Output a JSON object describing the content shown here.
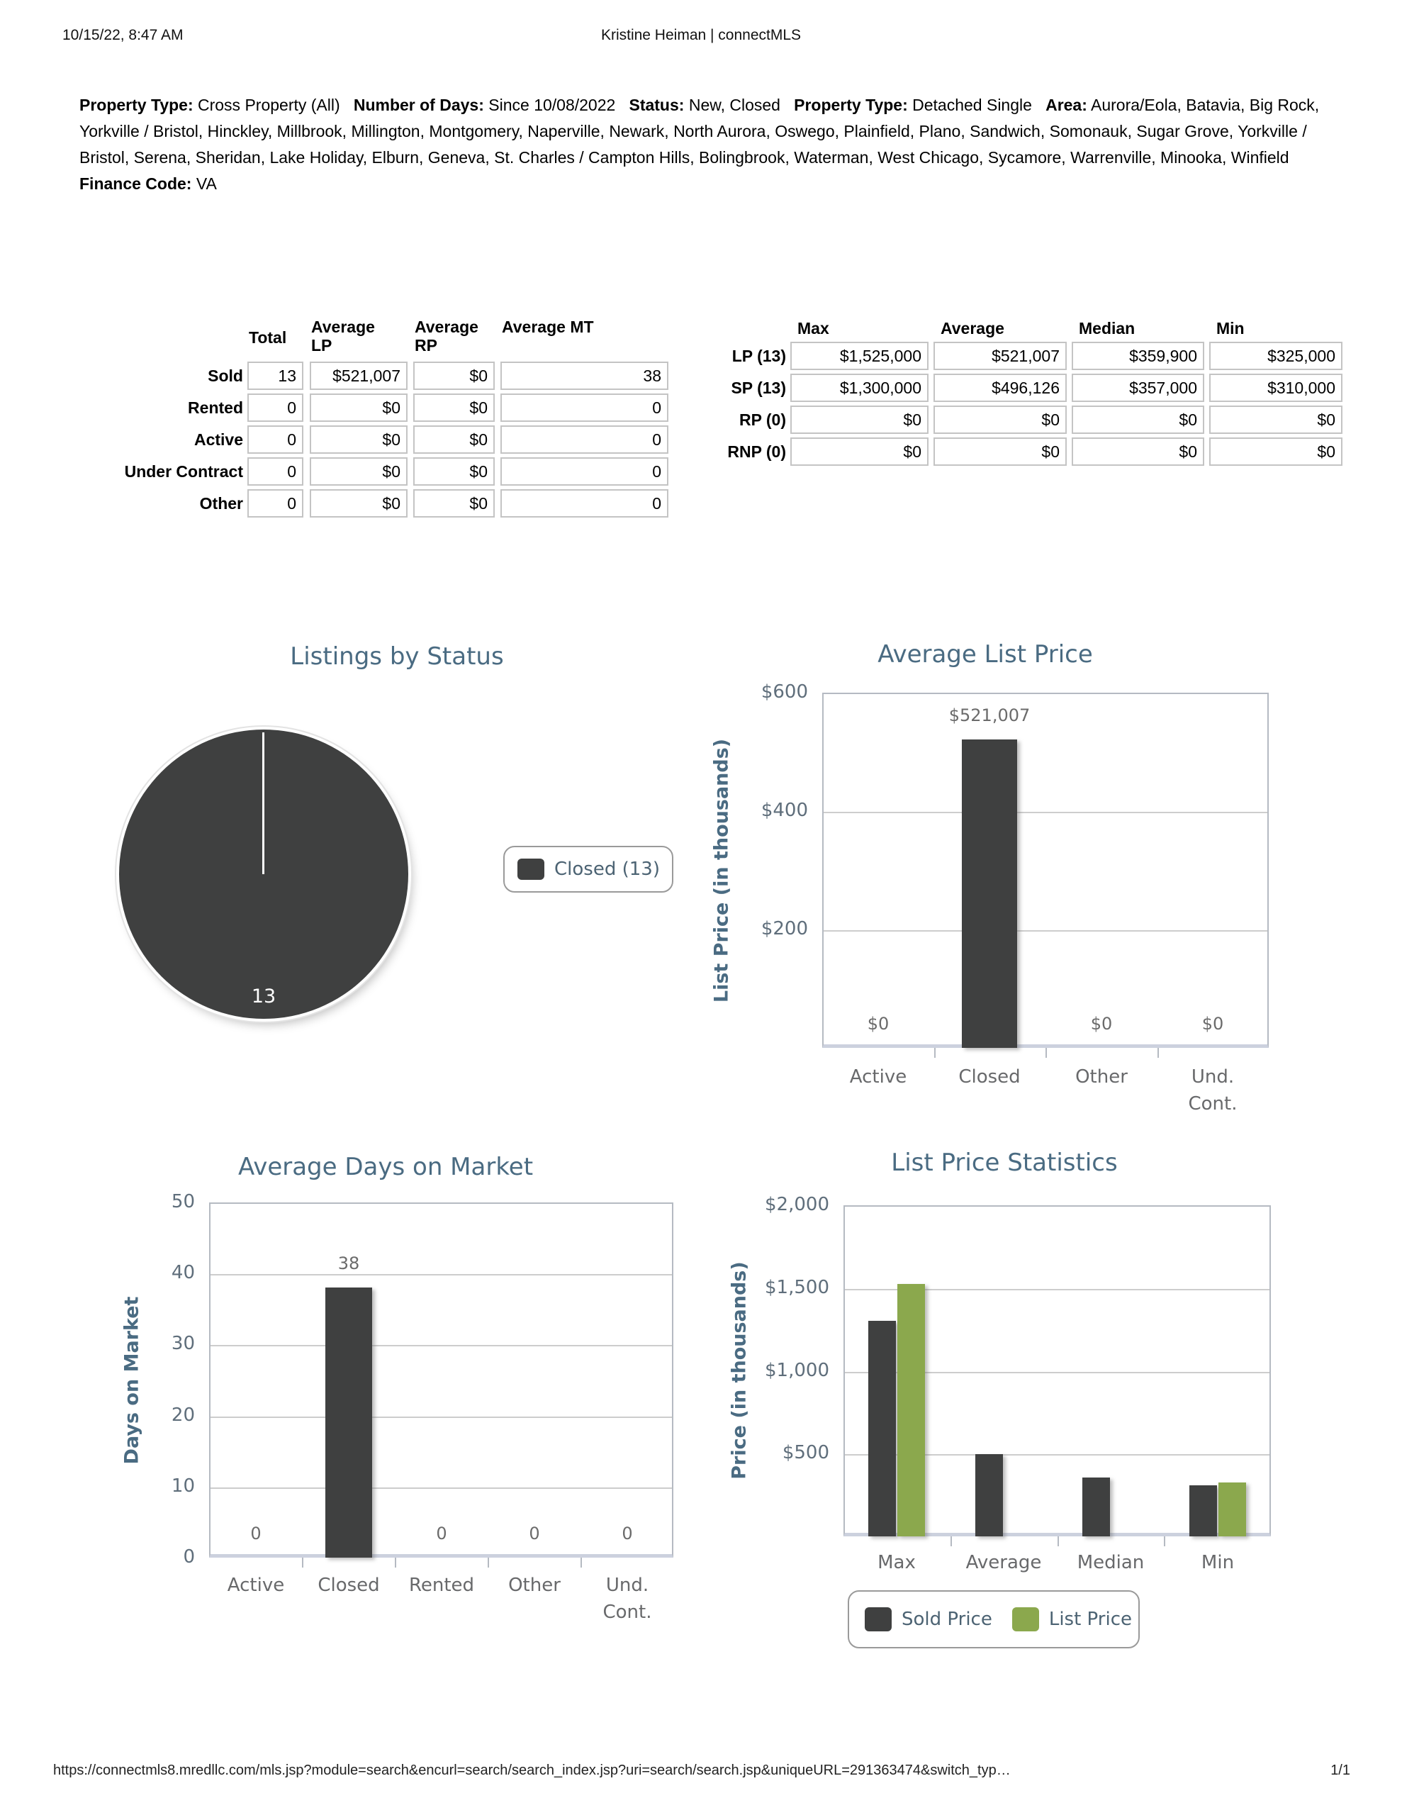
{
  "header": {
    "datetime": "10/15/22, 8:47 AM",
    "title": "Kristine Heiman | connectMLS"
  },
  "criteria": {
    "segments": [
      {
        "label": "Property Type:",
        "value": "Cross Property (All)"
      },
      {
        "label": "Number of Days:",
        "value": "Since 10/08/2022"
      },
      {
        "label": "Status:",
        "value": "New, Closed"
      },
      {
        "label": "Property Type:",
        "value": "Detached Single"
      },
      {
        "label": "Area:",
        "value": "Aurora/Eola, Batavia, Big Rock, Yorkville / Bristol, Hinckley, Millbrook, Millington, Montgomery, Naperville, Newark, North Aurora, Oswego, Plainfield, Plano, Sandwich, Somonauk, Sugar Grove, Yorkville / Bristol, Serena, Sheridan, Lake Holiday, Elburn, Geneva, St. Charles / Campton Hills, Bolingbrook, Waterman, West Chicago, Sycamore, Warrenville, Minooka, Winfield"
      },
      {
        "label": "Finance Code:",
        "value": "VA"
      }
    ]
  },
  "status_table": {
    "columns": [
      "Total",
      "Average LP",
      "Average RP",
      "Average MT"
    ],
    "rows": [
      {
        "label": "Sold",
        "values": [
          "13",
          "$521,007",
          "$0",
          "38"
        ]
      },
      {
        "label": "Rented",
        "values": [
          "0",
          "$0",
          "$0",
          "0"
        ]
      },
      {
        "label": "Active",
        "values": [
          "0",
          "$0",
          "$0",
          "0"
        ]
      },
      {
        "label": "Under Contract",
        "values": [
          "0",
          "$0",
          "$0",
          "0"
        ]
      },
      {
        "label": "Other",
        "values": [
          "0",
          "$0",
          "$0",
          "0"
        ]
      }
    ]
  },
  "price_table": {
    "columns": [
      "Max",
      "Average",
      "Median",
      "Min"
    ],
    "rows": [
      {
        "label": "LP (13)",
        "values": [
          "$1,525,000",
          "$521,007",
          "$359,900",
          "$325,000"
        ]
      },
      {
        "label": "SP (13)",
        "values": [
          "$1,300,000",
          "$496,126",
          "$357,000",
          "$310,000"
        ]
      },
      {
        "label": "RP (0)",
        "values": [
          "$0",
          "$0",
          "$0",
          "$0"
        ]
      },
      {
        "label": "RNP (0)",
        "values": [
          "$0",
          "$0",
          "$0",
          "$0"
        ]
      }
    ]
  },
  "colors": {
    "title_blue": "#4a6b82",
    "bar_dark": "#3f4040",
    "bar_green": "#8ba84d",
    "grid": "#cdcdcd",
    "plot_border": "#b5bac2",
    "axis_band": "#ccd1de",
    "tick_text": "#5f6e7b",
    "category_text": "#68696b",
    "value_text": "#6b6b6b",
    "legend_text": "#4c6373"
  },
  "chart_data": [
    {
      "id": "listings_by_status",
      "type": "pie",
      "title": "Listings by Status",
      "slices": [
        {
          "label": "Closed",
          "value": 13
        }
      ],
      "data_label": "13",
      "legend": [
        {
          "label": "Closed (13)",
          "color": "dark"
        }
      ],
      "legend_position": "right"
    },
    {
      "id": "average_list_price",
      "type": "bar",
      "title": "Average List Price",
      "ylabel": "List Price (in thousands)",
      "ylim": [
        0,
        600
      ],
      "yticks": [
        {
          "value": 600,
          "label": "$600"
        },
        {
          "value": 400,
          "label": "$400"
        },
        {
          "value": 200,
          "label": "$200"
        }
      ],
      "categories": [
        [
          "Active"
        ],
        [
          "Closed"
        ],
        [
          "Other"
        ],
        [
          "Und.",
          "Cont."
        ]
      ],
      "values": [
        0,
        521,
        0,
        0
      ],
      "value_labels": [
        "$0",
        "$521,007",
        "$0",
        "$0"
      ],
      "grid": true
    },
    {
      "id": "average_days_on_market",
      "type": "bar",
      "title": "Average Days on Market",
      "ylabel": "Days on Market",
      "ylim": [
        0,
        50
      ],
      "yticks": [
        {
          "value": 50,
          "label": "50"
        },
        {
          "value": 40,
          "label": "40"
        },
        {
          "value": 30,
          "label": "30"
        },
        {
          "value": 20,
          "label": "20"
        },
        {
          "value": 10,
          "label": "10"
        },
        {
          "value": 0,
          "label": "0"
        }
      ],
      "categories": [
        [
          "Active"
        ],
        [
          "Closed"
        ],
        [
          "Rented"
        ],
        [
          "Other"
        ],
        [
          "Und.",
          "Cont."
        ]
      ],
      "values": [
        0,
        38,
        0,
        0,
        0
      ],
      "value_labels": [
        "0",
        "38",
        "0",
        "0",
        "0"
      ],
      "grid": true
    },
    {
      "id": "list_price_statistics",
      "type": "bar",
      "title": "List Price Statistics",
      "ylabel": "Price (in thousands)",
      "ylim": [
        0,
        2000
      ],
      "yticks": [
        {
          "value": 2000,
          "label": "$2,000"
        },
        {
          "value": 1500,
          "label": "$1,500"
        },
        {
          "value": 1000,
          "label": "$1,000"
        },
        {
          "value": 500,
          "label": "$500"
        }
      ],
      "categories": [
        [
          "Max"
        ],
        [
          "Average"
        ],
        [
          "Median"
        ],
        [
          "Min"
        ]
      ],
      "series": [
        {
          "name": "Sold Price",
          "color": "dark",
          "values": [
            1300,
            496,
            357,
            310
          ]
        },
        {
          "name": "List Price",
          "color": "green",
          "values": [
            1525,
            null,
            null,
            325
          ]
        }
      ],
      "legend": [
        {
          "label": "Sold Price",
          "color": "dark"
        },
        {
          "label": "List Price",
          "color": "green"
        }
      ],
      "legend_position": "bottom",
      "grid": true
    }
  ],
  "footer": {
    "url": "https://connectmls8.mredllc.com/mls.jsp?module=search&encurl=search/search_index.jsp?uri=search/search.jsp&uniqueURL=291363474&switch_typ…",
    "page": "1/1"
  }
}
